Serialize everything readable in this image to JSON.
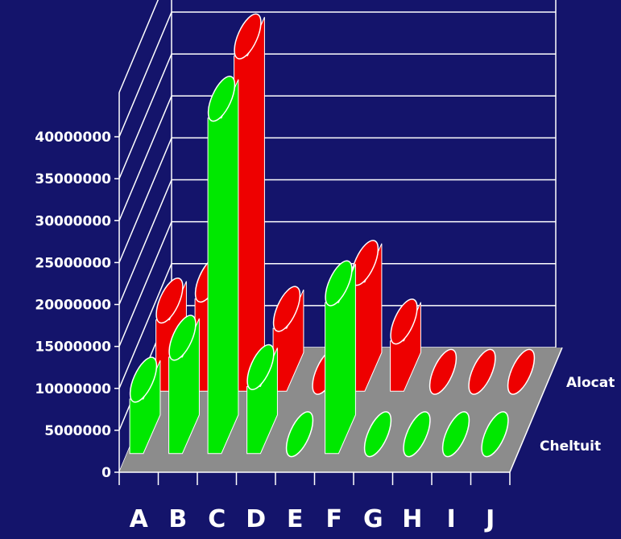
{
  "chart_data": {
    "type": "bar",
    "title": "",
    "xlabel": "",
    "ylabel": "",
    "categories": [
      "A",
      "B",
      "C",
      "D",
      "E",
      "F",
      "G",
      "H",
      "I",
      "J"
    ],
    "series": [
      {
        "name": "Cheltuit",
        "color": "#00e800",
        "values": [
          6500000,
          11500000,
          40000000,
          8000000,
          0,
          18000000,
          0,
          0,
          0,
          0
        ]
      },
      {
        "name": "Alocat",
        "color": "#ee0000",
        "values": [
          8500000,
          11000000,
          40000000,
          7500000,
          0,
          13000000,
          6000000,
          0,
          0,
          0
        ]
      }
    ],
    "ylim": [
      0,
      40000000
    ],
    "yticks": [
      "0",
      "5000000",
      "10000000",
      "15000000",
      "20000000",
      "25000000",
      "30000000",
      "35000000",
      "40000000"
    ],
    "legend_position": "right",
    "grid": true,
    "background_color": "#14146b",
    "floor_color": "#8c8c8c",
    "gridline_color": "#ffffff"
  }
}
